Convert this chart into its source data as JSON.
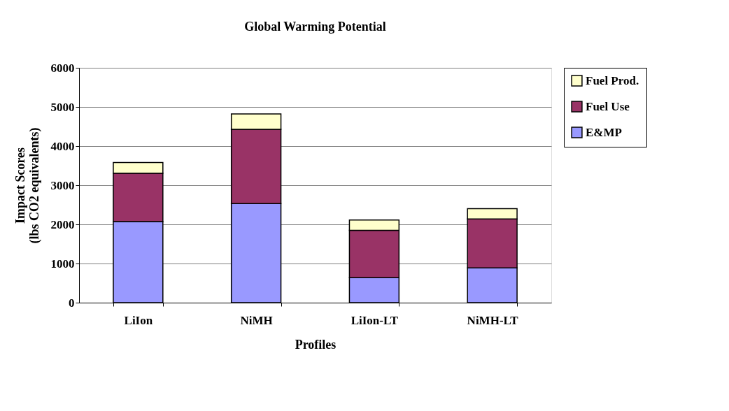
{
  "chart_data": {
    "type": "bar",
    "title": "Global Warming Potential",
    "xlabel": "Profiles",
    "ylabel": "Impact Scores (lbs CO2 equivalents)",
    "categories": [
      "LiIon",
      "NiMH",
      "LiIon-LT",
      "NiMH-LT"
    ],
    "stacked": true,
    "series": [
      {
        "name": "E&MP",
        "color": "#9999ff",
        "values": [
          2070,
          2530,
          640,
          890
        ]
      },
      {
        "name": "Fuel Use",
        "color": "#993366",
        "values": [
          1240,
          1900,
          1210,
          1250
        ]
      },
      {
        "name": "Fuel Prod.",
        "color": "#ffffcc",
        "values": [
          270,
          390,
          260,
          260
        ]
      }
    ],
    "ylim": [
      0,
      6000
    ],
    "yticks": [
      0,
      1000,
      2000,
      3000,
      4000,
      5000,
      6000
    ],
    "grid": "y",
    "legend": "right"
  }
}
